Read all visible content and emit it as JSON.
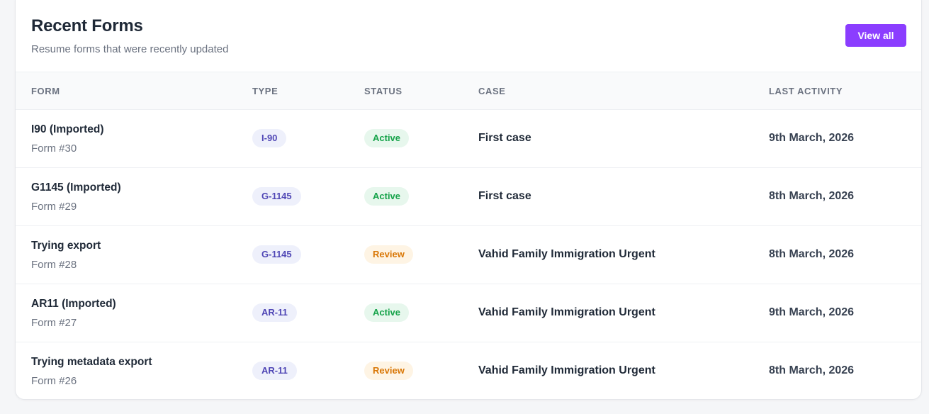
{
  "header": {
    "title": "Recent Forms",
    "subtitle": "Resume forms that were recently updated",
    "view_all_label": "View all"
  },
  "colors": {
    "accent": "#8b3dff",
    "active_bg": "#e7f7ed",
    "active_fg": "#16a34a",
    "review_bg": "#fef4e4",
    "review_fg": "#d97706",
    "type_bg": "#eef0fb",
    "type_fg": "#4f46b5"
  },
  "table": {
    "columns": [
      "FORM",
      "TYPE",
      "STATUS",
      "CASE",
      "LAST ACTIVITY"
    ],
    "rows": [
      {
        "name": "I90 (Imported)",
        "number": "Form #30",
        "type": "I-90",
        "status": "Active",
        "case": "First case",
        "last_activity": "9th March, 2026"
      },
      {
        "name": "G1145 (Imported)",
        "number": "Form #29",
        "type": "G-1145",
        "status": "Active",
        "case": "First case",
        "last_activity": "8th March, 2026"
      },
      {
        "name": "Trying export",
        "number": "Form #28",
        "type": "G-1145",
        "status": "Review",
        "case": "Vahid Family Immigration Urgent",
        "last_activity": "8th March, 2026"
      },
      {
        "name": "AR11 (Imported)",
        "number": "Form #27",
        "type": "AR-11",
        "status": "Active",
        "case": "Vahid Family Immigration Urgent",
        "last_activity": "9th March, 2026"
      },
      {
        "name": "Trying metadata export",
        "number": "Form #26",
        "type": "AR-11",
        "status": "Review",
        "case": "Vahid Family Immigration Urgent",
        "last_activity": "8th March, 2026"
      }
    ]
  }
}
